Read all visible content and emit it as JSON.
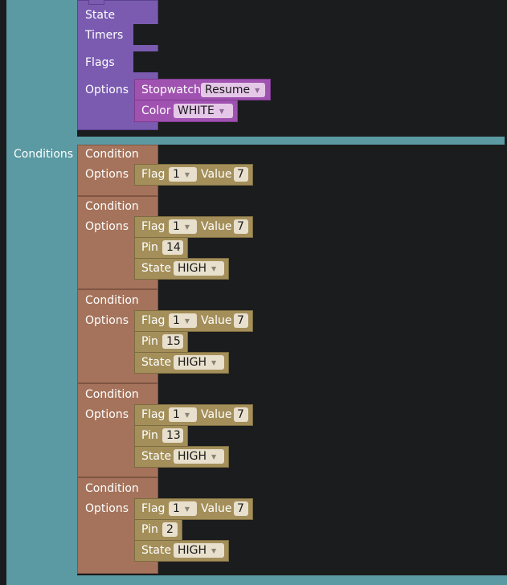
{
  "conditions_label": "Conditions",
  "rule": {
    "state_label": "State",
    "timers_label": "Timers",
    "flags_label": "Flags",
    "options_label": "Options",
    "stopwatch": {
      "label": "Stopwatch",
      "value": "Resume"
    },
    "color": {
      "label": "Color",
      "value": "WHITE"
    }
  },
  "labels": {
    "condition": "Condition",
    "options": "Options",
    "flag": "Flag",
    "value": "Value",
    "pin": "Pin",
    "state": "State"
  },
  "conditions": [
    {
      "flag": "1",
      "value": "7"
    },
    {
      "flag": "1",
      "value": "7",
      "pin": "14",
      "state": "HIGH"
    },
    {
      "flag": "1",
      "value": "7",
      "pin": "15",
      "state": "HIGH"
    },
    {
      "flag": "1",
      "value": "7",
      "pin": "13",
      "state": "HIGH"
    },
    {
      "flag": "1",
      "value": "7",
      "pin": "2",
      "state": "HIGH"
    }
  ],
  "colors": {
    "teal": "#5b9aa3",
    "purple": "#7a5bb0",
    "magenta": "#a052b0",
    "brown": "#a5735b",
    "olive": "#a48f5a",
    "background": "#1b1c1e"
  }
}
